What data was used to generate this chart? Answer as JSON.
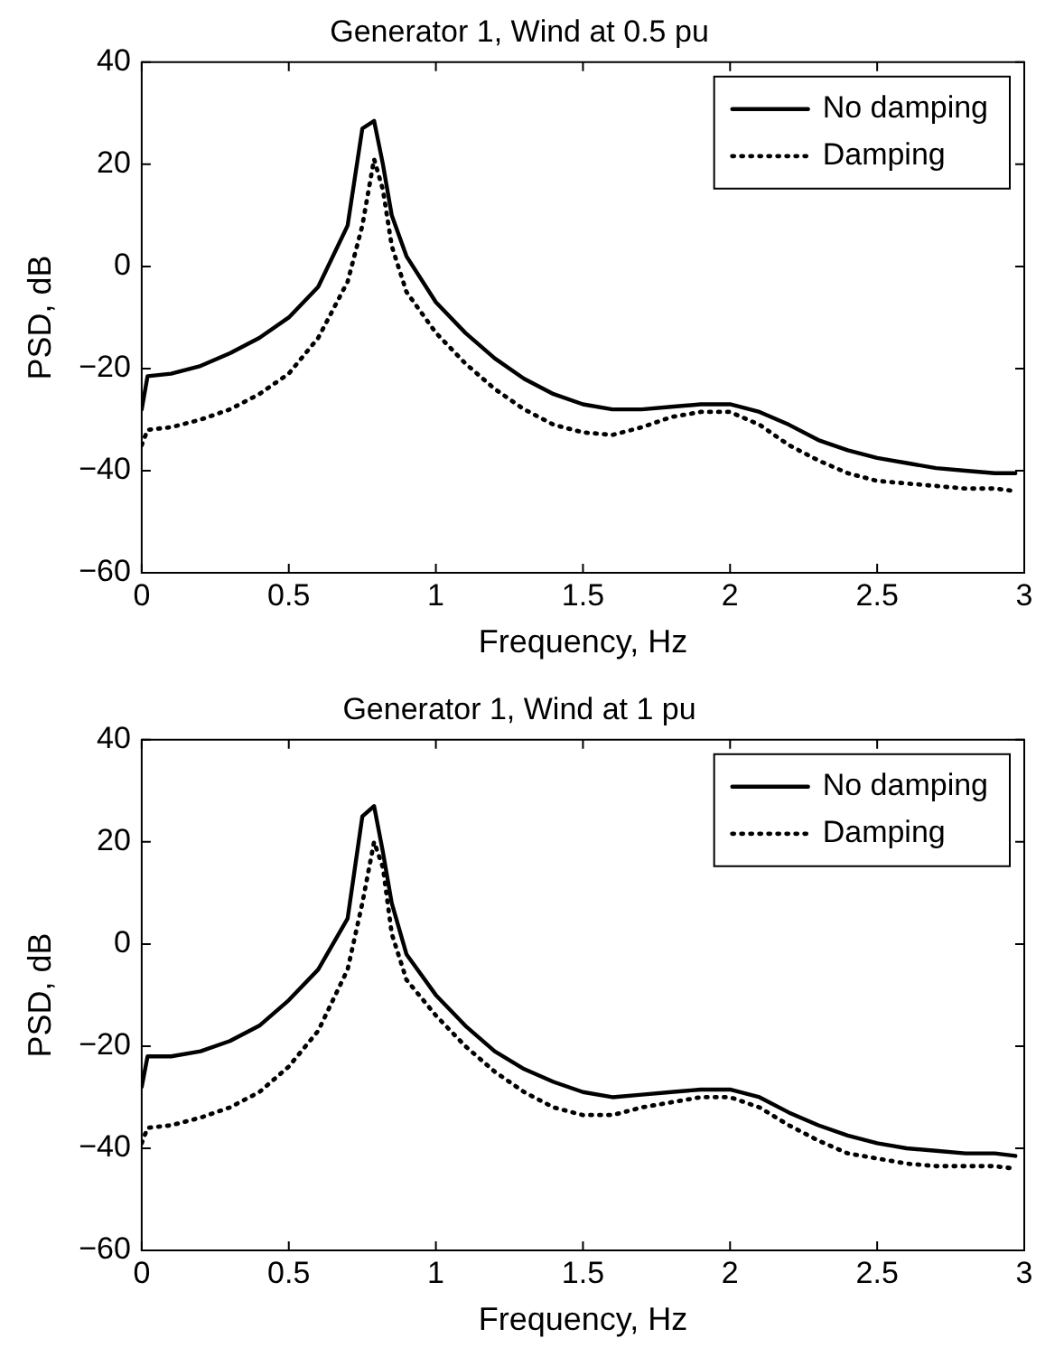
{
  "chart_data": [
    {
      "type": "line",
      "title": "Generator 1, Wind at 0.5 pu",
      "xlabel": "Frequency, Hz",
      "ylabel": "PSD, dB",
      "x": [
        0,
        0.02,
        0.1,
        0.2,
        0.3,
        0.4,
        0.5,
        0.6,
        0.7,
        0.75,
        0.79,
        0.82,
        0.85,
        0.9,
        1.0,
        1.1,
        1.2,
        1.3,
        1.4,
        1.5,
        1.6,
        1.7,
        1.8,
        1.9,
        2.0,
        2.1,
        2.2,
        2.3,
        2.4,
        2.5,
        2.6,
        2.7,
        2.8,
        2.9,
        2.97
      ],
      "series": [
        {
          "name": "No damping",
          "color": "#000000",
          "line_style": "solid",
          "values": [
            -28,
            -21.5,
            -21,
            -19.5,
            -17,
            -14,
            -10,
            -4,
            8,
            27,
            28.5,
            20,
            10,
            2,
            -7,
            -13,
            -18,
            -22,
            -25,
            -27,
            -28,
            -28,
            -27.5,
            -27,
            -27,
            -28.5,
            -31,
            -34,
            -36,
            -37.5,
            -38.5,
            -39.5,
            -40,
            -40.5,
            -40.5
          ]
        },
        {
          "name": "Damping",
          "color": "#000000",
          "line_style": "dotted",
          "values": [
            -35,
            -32,
            -31.5,
            -30,
            -28,
            -25,
            -21,
            -14,
            -3,
            8,
            21,
            15,
            4,
            -5,
            -13,
            -19,
            -24,
            -28,
            -31,
            -32.5,
            -33,
            -31.5,
            -29.5,
            -28.5,
            -28.5,
            -31,
            -35,
            -38,
            -40.5,
            -42,
            -42.5,
            -43,
            -43.5,
            -43.5,
            -44
          ]
        }
      ],
      "xlim": [
        0,
        3
      ],
      "xticks": [
        0,
        0.5,
        1,
        1.5,
        2,
        2.5,
        3
      ],
      "ylim": [
        -60,
        40
      ],
      "yticks": [
        -60,
        -40,
        -20,
        0,
        20,
        40
      ],
      "grid": false,
      "legend": "top right",
      "marker": "none"
    },
    {
      "type": "line",
      "title": "Generator 1, Wind at 1 pu",
      "xlabel": "Frequency, Hz",
      "ylabel": "PSD, dB",
      "x": [
        0,
        0.02,
        0.1,
        0.2,
        0.3,
        0.4,
        0.5,
        0.6,
        0.7,
        0.75,
        0.79,
        0.82,
        0.85,
        0.9,
        1.0,
        1.1,
        1.2,
        1.3,
        1.4,
        1.5,
        1.6,
        1.7,
        1.8,
        1.9,
        2.0,
        2.1,
        2.2,
        2.3,
        2.4,
        2.5,
        2.6,
        2.7,
        2.8,
        2.9,
        2.97
      ],
      "series": [
        {
          "name": "No damping",
          "color": "#000000",
          "line_style": "solid",
          "values": [
            -28,
            -22,
            -22,
            -21,
            -19,
            -16,
            -11,
            -5,
            5,
            25,
            27,
            18,
            8,
            -2,
            -10,
            -16,
            -21,
            -24.5,
            -27,
            -29,
            -30,
            -29.5,
            -29,
            -28.5,
            -28.5,
            -30,
            -33,
            -35.5,
            -37.5,
            -39,
            -40,
            -40.5,
            -41,
            -41,
            -41.5
          ]
        },
        {
          "name": "Damping",
          "color": "#000000",
          "line_style": "dotted",
          "values": [
            -39,
            -36,
            -35.5,
            -34,
            -32,
            -29,
            -24,
            -17,
            -5,
            8,
            20,
            15,
            2,
            -7,
            -14,
            -20,
            -25,
            -29,
            -32,
            -33.5,
            -33.5,
            -32,
            -31,
            -30,
            -30,
            -32,
            -35.5,
            -38.5,
            -41,
            -42,
            -43,
            -43.5,
            -43.5,
            -43.5,
            -44
          ]
        }
      ],
      "xlim": [
        0,
        3
      ],
      "xticks": [
        0,
        0.5,
        1,
        1.5,
        2,
        2.5,
        3
      ],
      "ylim": [
        -60,
        40
      ],
      "yticks": [
        -60,
        -40,
        -20,
        0,
        20,
        40
      ],
      "grid": false,
      "legend": "top right",
      "marker": "none"
    }
  ]
}
